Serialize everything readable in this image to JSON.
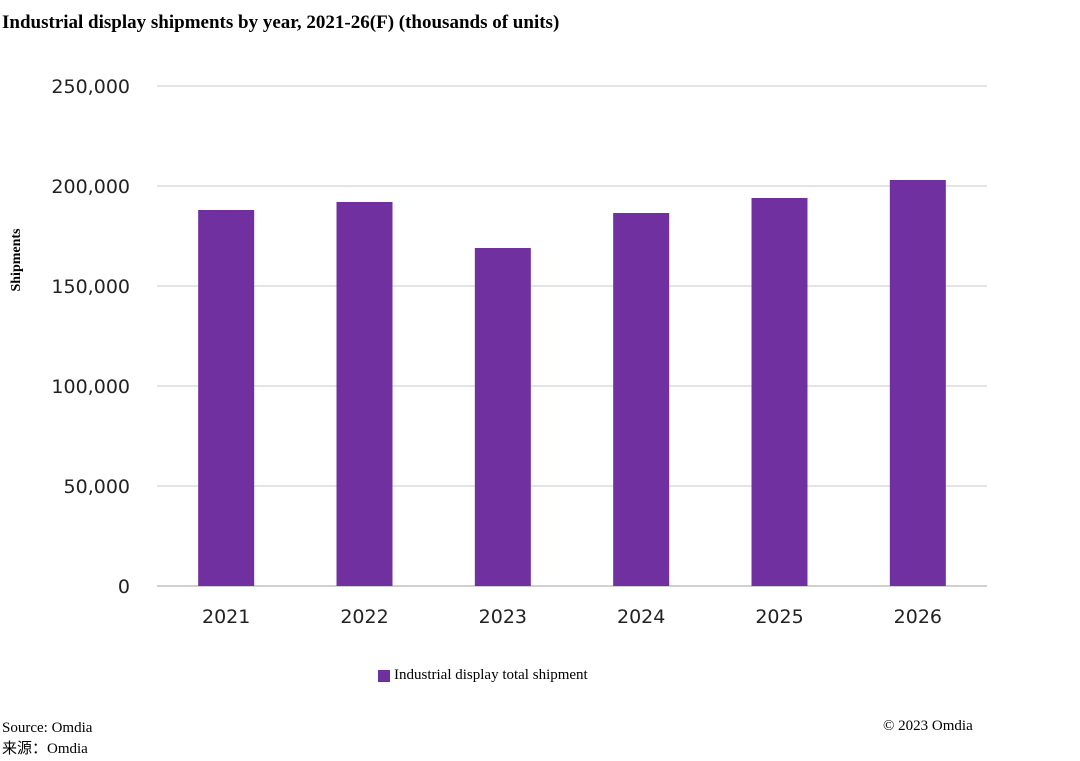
{
  "chart_data": {
    "type": "bar",
    "title": "Industrial display shipments by year, 2021-26(F) (thousands of units)",
    "xlabel": "",
    "ylabel": "Shipments",
    "categories": [
      "2021",
      "2022",
      "2023",
      "2024",
      "2025",
      "2026"
    ],
    "series": [
      {
        "name": "Industrial display total shipment",
        "values": [
          188000,
          192000,
          169000,
          186500,
          194000,
          203000
        ],
        "color": "#7030a0"
      }
    ],
    "ylim": [
      0,
      250000
    ],
    "yticks": [
      "0",
      "50,000",
      "100,000",
      "150,000",
      "200,000",
      "250,000"
    ],
    "grid": true,
    "legend_position": "bottom"
  },
  "footer": {
    "source": "Source: Omdia",
    "source_cn": "来源：Omdia",
    "copyright": "© 2023 Omdia"
  }
}
